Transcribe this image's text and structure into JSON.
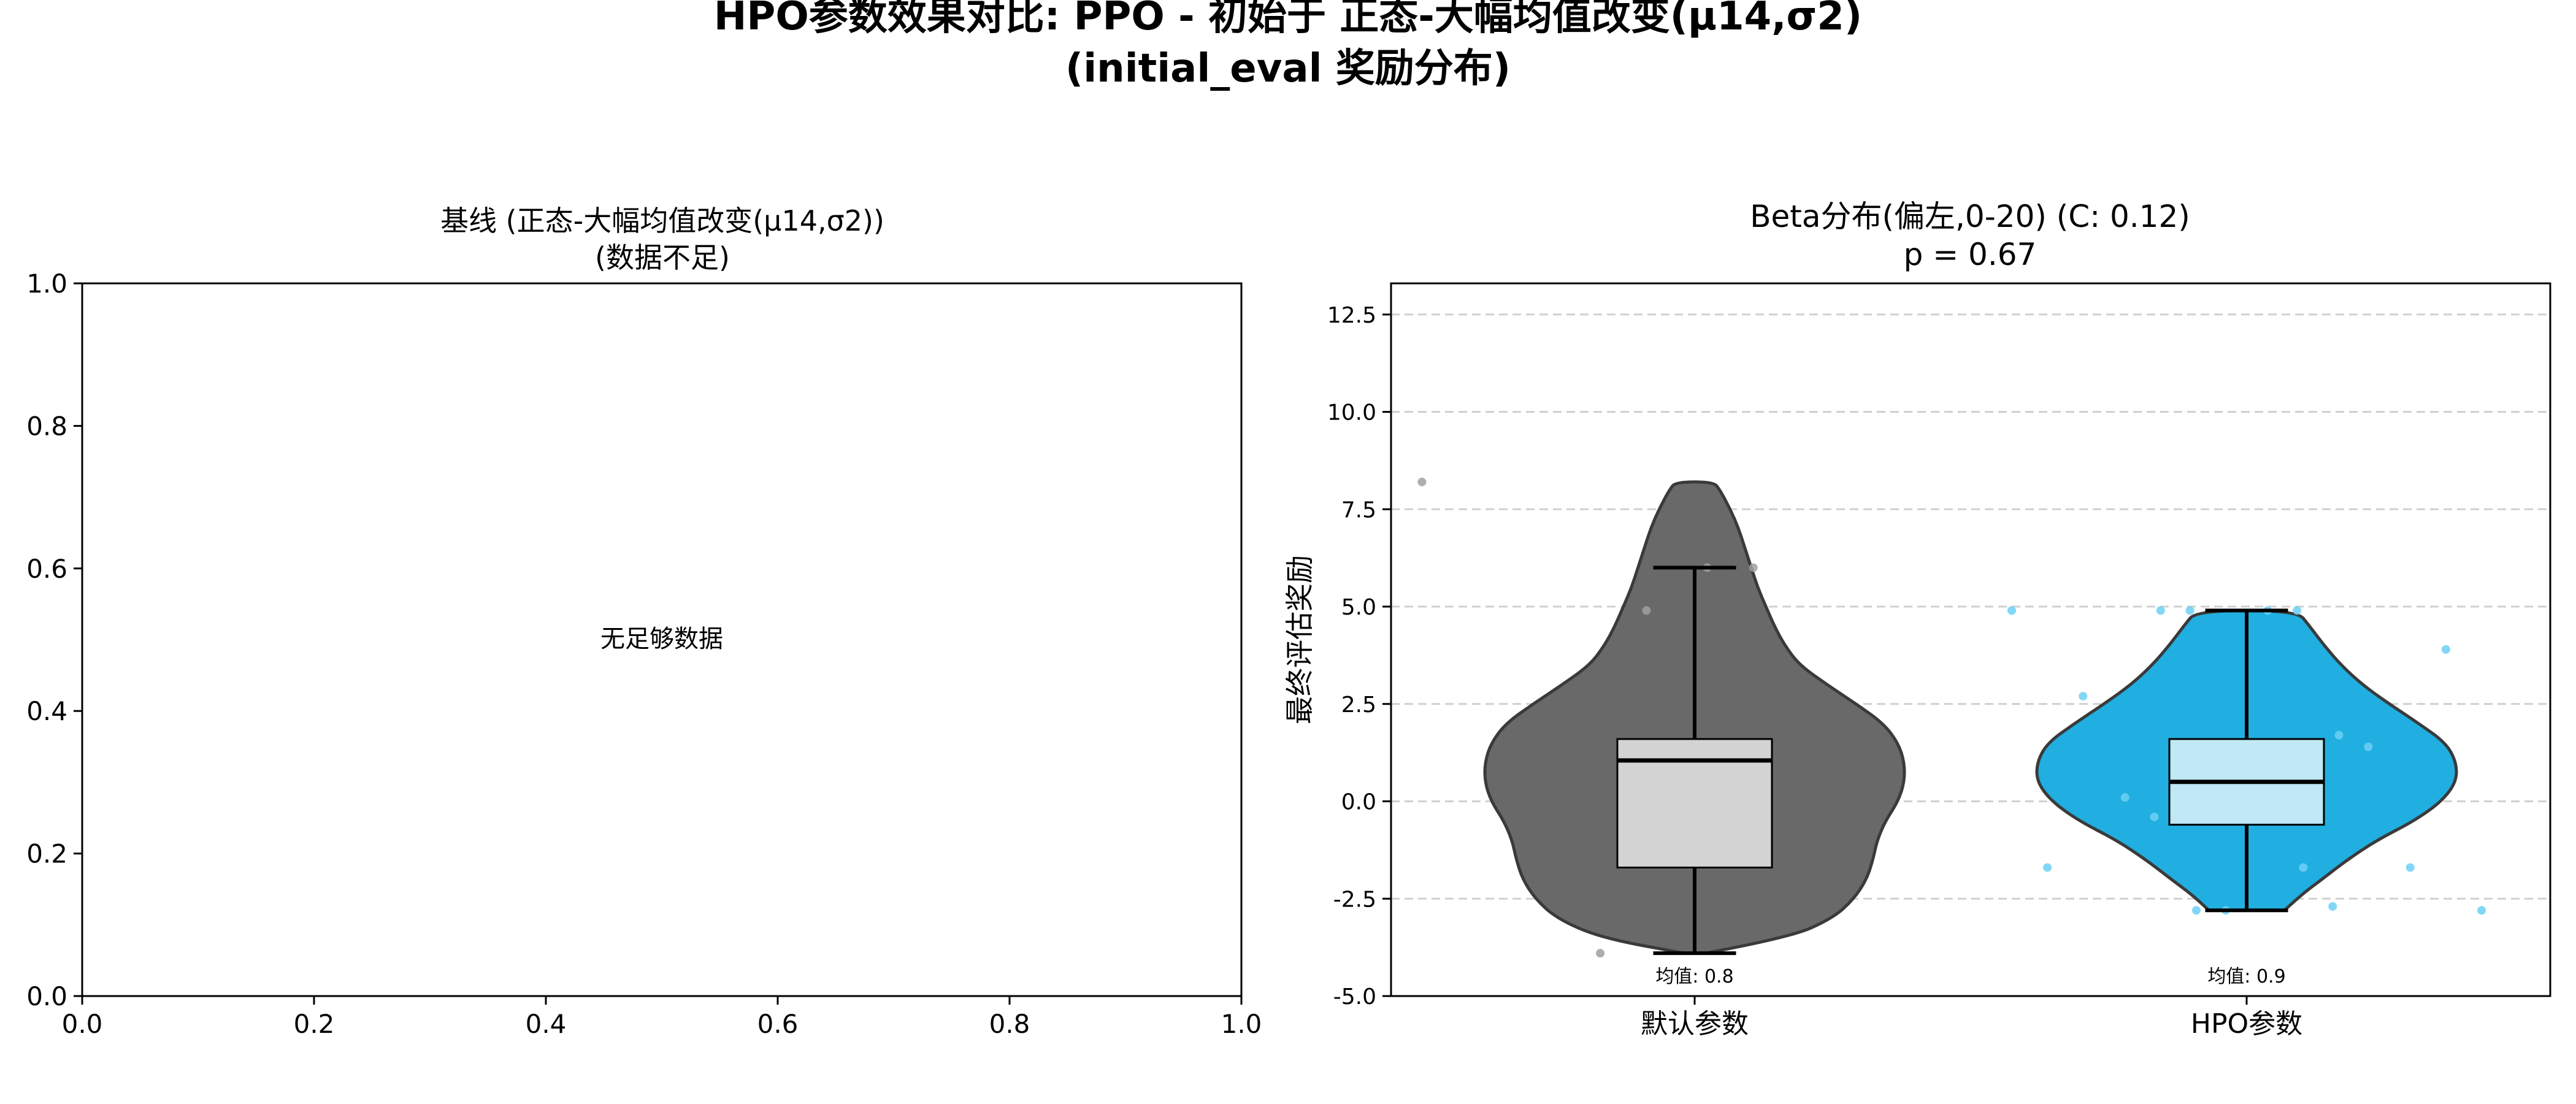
{
  "figure": {
    "title_line1": "HPO参数效果对比: PPO - 初始于 正态-大幅均值改变(μ14,σ2)",
    "title_line2": "(initial_eval 奖励分布)"
  },
  "chart_data": [
    {
      "type": "empty",
      "title_line1": "基线 (正态-大幅均值改变(μ14,σ2))",
      "title_line2": "(数据不足)",
      "message": "无足够数据",
      "xlim": [
        0,
        1
      ],
      "ylim": [
        0,
        1
      ],
      "x_ticks": [
        "0.0",
        "0.2",
        "0.4",
        "0.6",
        "0.8",
        "1.0"
      ],
      "y_ticks": [
        "0.0",
        "0.2",
        "0.4",
        "0.6",
        "0.8",
        "1.0"
      ]
    },
    {
      "type": "violin",
      "title_line1": "Beta分布(偏左,0-20) (C: 0.12)",
      "title_line2": "p = 0.67",
      "ylabel": "最终评估奖励",
      "ylim": [
        -5.0,
        13.3
      ],
      "y_ticks": [
        "-5.0",
        "-2.5",
        "0.0",
        "2.5",
        "5.0",
        "7.5",
        "10.0",
        "12.5"
      ],
      "grid": "horizontal-dashed",
      "categories": [
        "默认参数",
        "HPO参数"
      ],
      "mean_labels": [
        "均值: 0.8",
        "均值: 0.9"
      ],
      "series": [
        {
          "min": -3.9,
          "q1": -1.7,
          "median": 1.05,
          "q3": 1.6,
          "whisker_high": 6.0,
          "max": 8.2,
          "violin_color": "#696969",
          "box_color": "#d3d3d3",
          "point_color": "#a0a0a0",
          "points": [
            8.2,
            6.0,
            6.0,
            4.9,
            -3.9
          ],
          "density": [
            [
              -3.9,
              0.05
            ],
            [
              -3.5,
              0.45
            ],
            [
              -3.0,
              0.66
            ],
            [
              -2.5,
              0.76
            ],
            [
              -2.0,
              0.82
            ],
            [
              -1.5,
              0.85
            ],
            [
              -1.0,
              0.87
            ],
            [
              -0.5,
              0.91
            ],
            [
              0.0,
              0.97
            ],
            [
              0.5,
              1.0
            ],
            [
              1.0,
              1.0
            ],
            [
              1.5,
              0.97
            ],
            [
              2.0,
              0.9
            ],
            [
              2.5,
              0.77
            ],
            [
              3.0,
              0.63
            ],
            [
              3.5,
              0.5
            ],
            [
              4.0,
              0.43
            ],
            [
              4.5,
              0.38
            ],
            [
              5.0,
              0.34
            ],
            [
              5.5,
              0.3
            ],
            [
              6.0,
              0.27
            ],
            [
              6.5,
              0.24
            ],
            [
              7.0,
              0.21
            ],
            [
              7.5,
              0.17
            ],
            [
              8.0,
              0.12
            ],
            [
              8.2,
              0.09
            ]
          ]
        },
        {
          "min": -2.8,
          "q1": -0.6,
          "median": 0.5,
          "q3": 1.6,
          "whisker_high": 4.9,
          "max": 4.9,
          "violin_color": "#21aee0",
          "box_color": "#c0e8f5",
          "point_color": "#6cd0f5",
          "points": [
            4.9,
            4.9,
            4.9,
            4.9,
            4.9,
            3.9,
            2.7,
            1.7,
            1.4,
            0.6,
            0.5,
            0.1,
            -0.4,
            -1.7,
            -1.7,
            -1.7,
            -2.7,
            -2.8,
            -2.8,
            -2.8
          ],
          "density": [
            [
              -2.8,
              0.18
            ],
            [
              -2.4,
              0.26
            ],
            [
              -2.0,
              0.36
            ],
            [
              -1.5,
              0.48
            ],
            [
              -1.0,
              0.62
            ],
            [
              -0.5,
              0.8
            ],
            [
              0.0,
              0.93
            ],
            [
              0.5,
              1.0
            ],
            [
              1.0,
              1.0
            ],
            [
              1.5,
              0.95
            ],
            [
              2.0,
              0.82
            ],
            [
              2.5,
              0.68
            ],
            [
              3.0,
              0.55
            ],
            [
              3.5,
              0.45
            ],
            [
              4.0,
              0.37
            ],
            [
              4.5,
              0.3
            ],
            [
              4.9,
              0.24
            ]
          ]
        }
      ]
    }
  ]
}
